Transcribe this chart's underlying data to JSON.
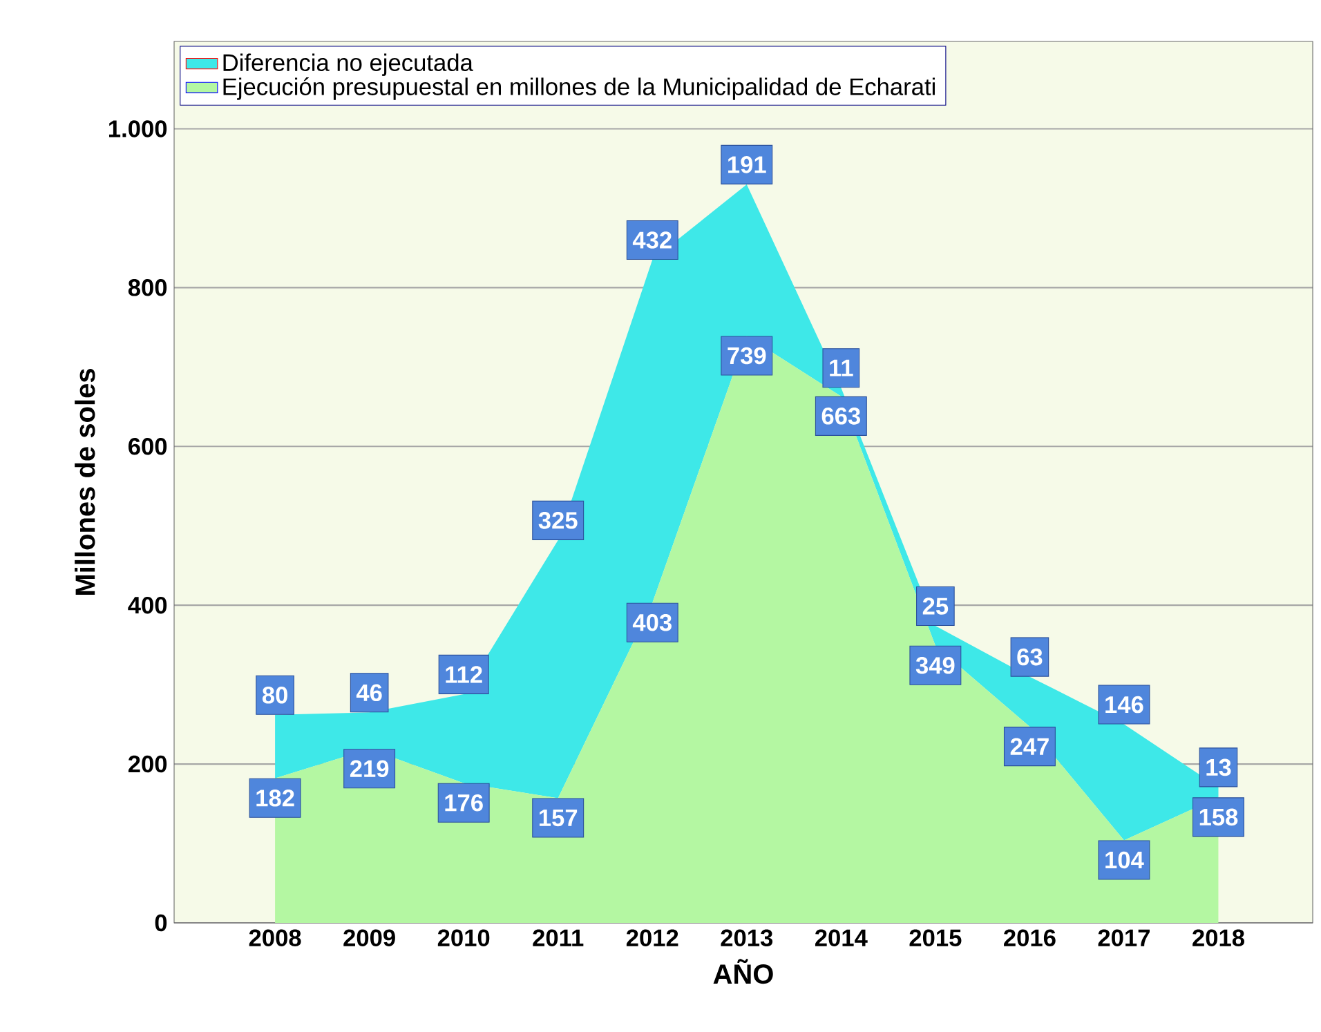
{
  "chart_data": {
    "type": "area",
    "stacked": true,
    "xlabel": "AÑO",
    "ylabel": "Millones de soles",
    "categories": [
      "2008",
      "2009",
      "2010",
      "2011",
      "2012",
      "2013",
      "2014",
      "2015",
      "2016",
      "2017",
      "2018"
    ],
    "series": [
      {
        "name": "Ejecución presupuestal en millones de la Municipalidad de Echarati",
        "color": "#b4f7a2",
        "values": [
          182,
          219,
          176,
          157,
          403,
          739,
          663,
          349,
          247,
          104,
          158
        ]
      },
      {
        "name": "Diferencia no ejecutada",
        "color": "#3ee8e8",
        "values": [
          80,
          46,
          112,
          325,
          432,
          191,
          11,
          25,
          63,
          146,
          13
        ]
      }
    ],
    "ylim": [
      0,
      1110
    ],
    "yticks": [
      0,
      200,
      400,
      600,
      800,
      {
        "value": 1000,
        "label": "1.000"
      }
    ],
    "grid": "y",
    "legend": "top left",
    "data_labels": true
  }
}
